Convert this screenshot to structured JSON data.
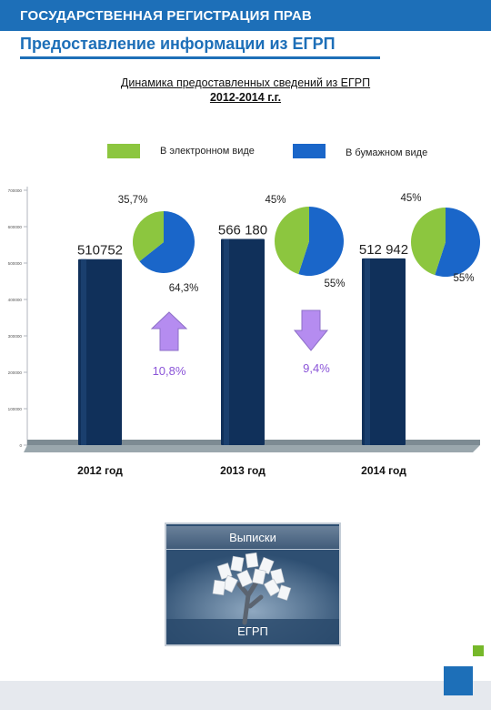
{
  "header": {
    "agency": "ГОСУДАРСТВЕННАЯ РЕГИСТРАЦИЯ ПРАВ",
    "page_title": "Предоставление информации из ЕГРП"
  },
  "colors": {
    "brand_blue": "#1d6fb8",
    "electronic_green": "#8cc63f",
    "paper_blue": "#1a66c9",
    "bar_navy": "#10305a",
    "growth_purple": "#b58cf0"
  },
  "chart_data": {
    "type": "bar",
    "title": "Динамика предоставленных сведений из ЕГРП",
    "subtitle": "2012-2014 г.г.",
    "categories": [
      "2012 год",
      "2013 год",
      "2014 год"
    ],
    "values": [
      510752,
      566180,
      512942
    ],
    "value_labels": [
      "510752",
      "566 180",
      "512 942"
    ],
    "ylim": [
      0,
      700000
    ],
    "yticks": [
      0,
      100000,
      200000,
      300000,
      400000,
      500000,
      600000,
      700000
    ],
    "ytick_labels": [
      "0",
      "100000",
      "200000",
      "300000",
      "400000",
      "500000",
      "600000",
      "700000"
    ],
    "grid": false,
    "legend": [
      {
        "label": "В электронном виде",
        "color": "#8cc63f"
      },
      {
        "label": "В бумажном виде",
        "color": "#1a66c9"
      }
    ],
    "pies": [
      {
        "category": "2012 год",
        "electronic": 35.7,
        "paper": 64.3,
        "electronic_label": "35,7%",
        "paper_label": "64,3%"
      },
      {
        "category": "2013 год",
        "electronic": 45,
        "paper": 55,
        "electronic_label": "45%",
        "paper_label": "55%"
      },
      {
        "category": "2014 год",
        "electronic": 45,
        "paper": 55,
        "electronic_label": "45%",
        "paper_label": "55%"
      }
    ],
    "changes": [
      {
        "direction": "up",
        "label": "10,8%"
      },
      {
        "direction": "down",
        "label": "9,4%"
      }
    ]
  },
  "card": {
    "header": "Выписки",
    "footer": "ЕГРП"
  }
}
